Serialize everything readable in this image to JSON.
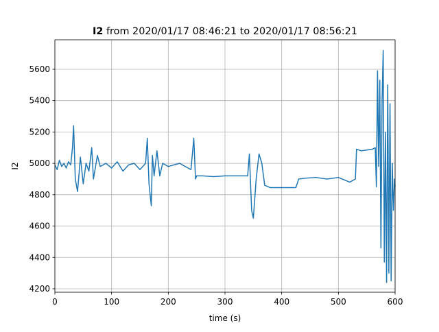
{
  "chart_data": {
    "type": "line",
    "title_bold": "I2",
    "title": "from 2020/01/17 08:46:21 to 2020/01/17 08:56:21",
    "x_label": "time (s)",
    "y_label": "I2",
    "xlim": [
      0,
      600
    ],
    "ylim": [
      4178,
      5788
    ],
    "xticks": [
      0,
      100,
      200,
      300,
      400,
      500,
      600
    ],
    "yticks": [
      4200,
      4400,
      4600,
      4800,
      5000,
      5200,
      5400,
      5600
    ],
    "grid": true,
    "series": [
      {
        "color": "#1f77b4",
        "x": [
          0,
          4,
          8,
          12,
          16,
          20,
          24,
          28,
          31,
          33,
          36,
          40,
          45,
          50,
          55,
          60,
          65,
          68,
          75,
          80,
          90,
          100,
          110,
          120,
          130,
          140,
          150,
          160,
          163,
          166,
          170,
          172,
          175,
          180,
          185,
          190,
          200,
          210,
          220,
          230,
          240,
          245,
          248,
          250,
          260,
          280,
          300,
          320,
          340,
          343,
          347,
          350,
          355,
          360,
          365,
          370,
          380,
          400,
          425,
          430,
          440,
          460,
          480,
          500,
          520,
          530,
          532,
          540,
          560,
          565,
          567,
          569,
          571,
          573,
          575,
          577,
          579,
          581,
          583,
          585,
          587,
          589,
          591,
          593,
          595,
          597,
          599,
          600
        ],
        "values": [
          4990,
          4960,
          5020,
          4980,
          5000,
          4970,
          5010,
          4990,
          5100,
          5240,
          4900,
          4820,
          5040,
          4870,
          5000,
          4950,
          5100,
          4900,
          5050,
          4980,
          5000,
          4970,
          5010,
          4950,
          4990,
          5000,
          4960,
          5000,
          5160,
          4870,
          4730,
          5050,
          4920,
          5080,
          4920,
          5000,
          4980,
          4990,
          5000,
          4980,
          4960,
          5160,
          4900,
          4920,
          4920,
          4915,
          4920,
          4920,
          4920,
          5060,
          4700,
          4650,
          4900,
          5060,
          5000,
          4860,
          4845,
          4845,
          4845,
          4900,
          4905,
          4910,
          4900,
          4910,
          4880,
          4900,
          5090,
          5080,
          5090,
          5100,
          4850,
          5590,
          4980,
          5530,
          4460,
          5400,
          5720,
          4370,
          5200,
          4240,
          5500,
          4300,
          5380,
          4250,
          5000,
          4700,
          4900,
          4850
        ]
      }
    ]
  }
}
